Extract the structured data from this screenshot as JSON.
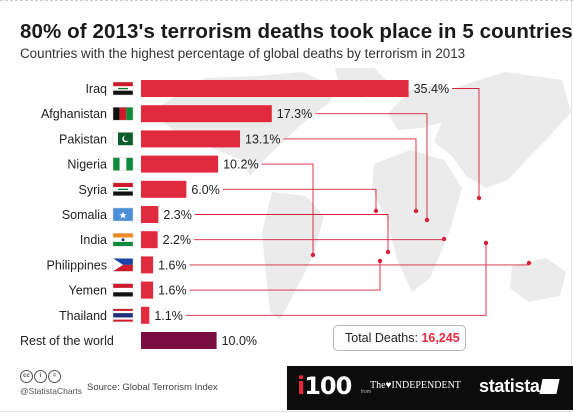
{
  "header": {
    "title": "80% of 2013's terrorism deaths took place in 5 countries",
    "subtitle": "Countries with the highest percentage of global deaths by terrorism in 2013"
  },
  "chart_data": {
    "type": "bar",
    "orientation": "horizontal",
    "categories": [
      "Iraq",
      "Afghanistan",
      "Pakistan",
      "Nigeria",
      "Syria",
      "Somalia",
      "India",
      "Philippines",
      "Yemen",
      "Thailand",
      "Rest of the world"
    ],
    "values": [
      35.4,
      17.3,
      13.1,
      10.2,
      6.0,
      2.3,
      2.2,
      1.6,
      1.6,
      1.1,
      10.0
    ],
    "value_labels": [
      "35.4%",
      "17.3%",
      "13.1%",
      "10.2%",
      "6.0%",
      "2.3%",
      "2.2%",
      "1.6%",
      "1.6%",
      "1.1%",
      "10.0%"
    ],
    "title": "80% of 2013's terrorism deaths took place in 5 countries",
    "subtitle": "Countries with the highest percentage of global deaths by terrorism in 2013",
    "unit": "%",
    "flags": [
      "iraq",
      "afghanistan",
      "pakistan",
      "nigeria",
      "syria",
      "somalia",
      "india",
      "philippines",
      "yemen",
      "thailand",
      ""
    ],
    "bar_color": "#e22a3e",
    "bar_color_rest": "#7a0e43",
    "background": "world-map"
  },
  "total": {
    "label": "Total Deaths:",
    "value": "16,245"
  },
  "footer": {
    "cc_icons": [
      "cc",
      "by",
      "nd"
    ],
    "cc_labels": [
      "cc",
      "i",
      "="
    ],
    "handle": "@StatistaCharts",
    "source": "Source: Global Terrorism Index",
    "publisher_i100": "i100",
    "publisher_by": "from",
    "publisher_independent": "The♥INDEPENDENT",
    "brand": "statista"
  }
}
